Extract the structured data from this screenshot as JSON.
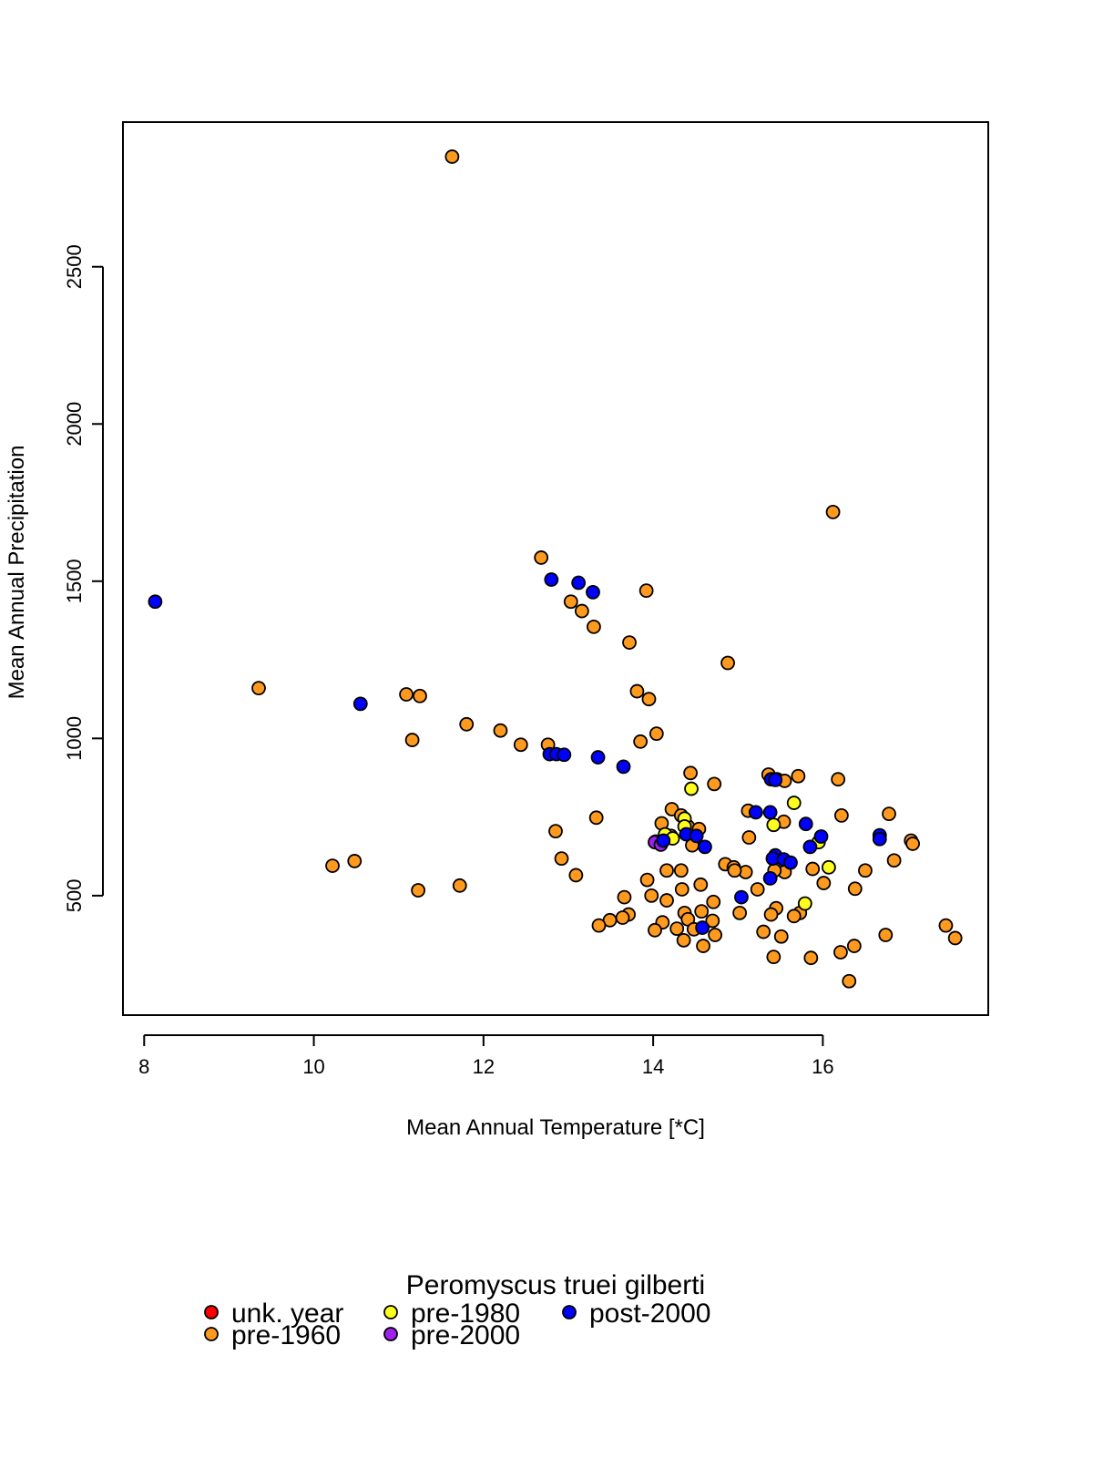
{
  "chart_data": {
    "type": "scatter",
    "xlabel": "Mean Annual Temperature [*C]",
    "ylabel": "Mean Annual Precipitation",
    "xlim": [
      7.75,
      17.95
    ],
    "ylim": [
      120,
      2960
    ],
    "xticks": [
      8,
      10,
      12,
      14,
      16
    ],
    "yticks": [
      500,
      1000,
      1500,
      2000,
      2500
    ],
    "grid": false,
    "legend": {
      "title": "Peromyscus truei gilberti",
      "placement": "bottom",
      "entries": [
        {
          "label": "unk. year",
          "color": "#ff0000"
        },
        {
          "label": "pre-1960",
          "color": "#ff9a1f"
        },
        {
          "label": "pre-1980",
          "color": "#ffff1f"
        },
        {
          "label": "pre-2000",
          "color": "#a020f0"
        },
        {
          "label": "post-2000",
          "color": "#0000ff"
        }
      ]
    },
    "series": [
      {
        "name": "pre-1960",
        "color": "#ff9a1f",
        "points": [
          [
            11.63,
            2850
          ],
          [
            16.12,
            1720
          ],
          [
            12.68,
            1575
          ],
          [
            13.92,
            1470
          ],
          [
            13.03,
            1435
          ],
          [
            13.16,
            1405
          ],
          [
            13.3,
            1355
          ],
          [
            13.72,
            1305
          ],
          [
            14.88,
            1240
          ],
          [
            9.35,
            1160
          ],
          [
            13.81,
            1150
          ],
          [
            11.09,
            1140
          ],
          [
            11.25,
            1135
          ],
          [
            13.95,
            1125
          ],
          [
            11.8,
            1045
          ],
          [
            12.2,
            1025
          ],
          [
            14.04,
            1015
          ],
          [
            11.16,
            995
          ],
          [
            13.85,
            990
          ],
          [
            12.44,
            980
          ],
          [
            12.76,
            980
          ],
          [
            14.44,
            890
          ],
          [
            15.36,
            885
          ],
          [
            15.71,
            880
          ],
          [
            15.46,
            870
          ],
          [
            15.55,
            865
          ],
          [
            16.18,
            870
          ],
          [
            14.72,
            855
          ],
          [
            14.22,
            775
          ],
          [
            15.12,
            770
          ],
          [
            16.78,
            760
          ],
          [
            16.22,
            755
          ],
          [
            14.33,
            755
          ],
          [
            13.33,
            748
          ],
          [
            15.54,
            735
          ],
          [
            14.1,
            730
          ],
          [
            14.41,
            720
          ],
          [
            14.54,
            712
          ],
          [
            12.85,
            705
          ],
          [
            14.21,
            690
          ],
          [
            15.13,
            685
          ],
          [
            17.04,
            675
          ],
          [
            14.03,
            672
          ],
          [
            14.46,
            660
          ],
          [
            17.06,
            665
          ],
          [
            12.92,
            618
          ],
          [
            10.48,
            610
          ],
          [
            16.84,
            612
          ],
          [
            10.22,
            595
          ],
          [
            14.85,
            600
          ],
          [
            14.95,
            590
          ],
          [
            15.88,
            585
          ],
          [
            16.5,
            580
          ],
          [
            14.33,
            580
          ],
          [
            14.16,
            580
          ],
          [
            15.09,
            575
          ],
          [
            14.96,
            580
          ],
          [
            13.09,
            565
          ],
          [
            15.55,
            575
          ],
          [
            15.43,
            580
          ],
          [
            13.93,
            550
          ],
          [
            16.01,
            540
          ],
          [
            14.56,
            535
          ],
          [
            11.72,
            532
          ],
          [
            15.23,
            520
          ],
          [
            14.34,
            520
          ],
          [
            16.38,
            522
          ],
          [
            11.23,
            517
          ],
          [
            13.98,
            500
          ],
          [
            13.66,
            495
          ],
          [
            14.16,
            485
          ],
          [
            14.71,
            480
          ],
          [
            15.45,
            460
          ],
          [
            15.73,
            445
          ],
          [
            14.57,
            450
          ],
          [
            14.37,
            445
          ],
          [
            15.02,
            445
          ],
          [
            15.39,
            440
          ],
          [
            13.71,
            440
          ],
          [
            15.66,
            435
          ],
          [
            13.64,
            430
          ],
          [
            14.41,
            425
          ],
          [
            14.7,
            420
          ],
          [
            13.49,
            422
          ],
          [
            14.11,
            415
          ],
          [
            13.36,
            405
          ],
          [
            17.45,
            405
          ],
          [
            14.28,
            395
          ],
          [
            14.02,
            390
          ],
          [
            14.48,
            393
          ],
          [
            15.3,
            385
          ],
          [
            14.73,
            375
          ],
          [
            15.51,
            370
          ],
          [
            16.74,
            375
          ],
          [
            17.56,
            365
          ],
          [
            14.36,
            358
          ],
          [
            16.37,
            340
          ],
          [
            14.59,
            340
          ],
          [
            16.21,
            320
          ],
          [
            15.42,
            305
          ],
          [
            15.86,
            302
          ],
          [
            16.31,
            228
          ]
        ]
      },
      {
        "name": "pre-1980",
        "color": "#ffff1f",
        "points": [
          [
            14.45,
            840
          ],
          [
            15.66,
            795
          ],
          [
            14.37,
            745
          ],
          [
            15.42,
            725
          ],
          [
            14.37,
            720
          ],
          [
            14.14,
            695
          ],
          [
            14.23,
            682
          ],
          [
            15.95,
            670
          ],
          [
            16.07,
            590
          ],
          [
            15.79,
            475
          ]
        ]
      },
      {
        "name": "pre-2000",
        "color": "#a020f0",
        "points": [
          [
            14.02,
            670
          ],
          [
            14.09,
            662
          ]
        ]
      },
      {
        "name": "post-2000",
        "color": "#0000ff",
        "points": [
          [
            8.13,
            1435
          ],
          [
            12.8,
            1505
          ],
          [
            13.12,
            1495
          ],
          [
            13.29,
            1465
          ],
          [
            10.55,
            1110
          ],
          [
            12.78,
            950
          ],
          [
            12.86,
            950
          ],
          [
            12.95,
            948
          ],
          [
            13.35,
            940
          ],
          [
            13.65,
            910
          ],
          [
            15.39,
            870
          ],
          [
            15.44,
            868
          ],
          [
            15.21,
            765
          ],
          [
            15.38,
            765
          ],
          [
            15.8,
            728
          ],
          [
            14.39,
            695
          ],
          [
            14.51,
            690
          ],
          [
            15.98,
            688
          ],
          [
            16.67,
            692
          ],
          [
            16.67,
            680
          ],
          [
            14.12,
            675
          ],
          [
            14.61,
            655
          ],
          [
            15.85,
            655
          ],
          [
            15.44,
            628
          ],
          [
            15.41,
            618
          ],
          [
            15.54,
            615
          ],
          [
            15.62,
            605
          ],
          [
            15.38,
            555
          ],
          [
            15.04,
            495
          ],
          [
            14.58,
            398
          ]
        ]
      }
    ]
  }
}
